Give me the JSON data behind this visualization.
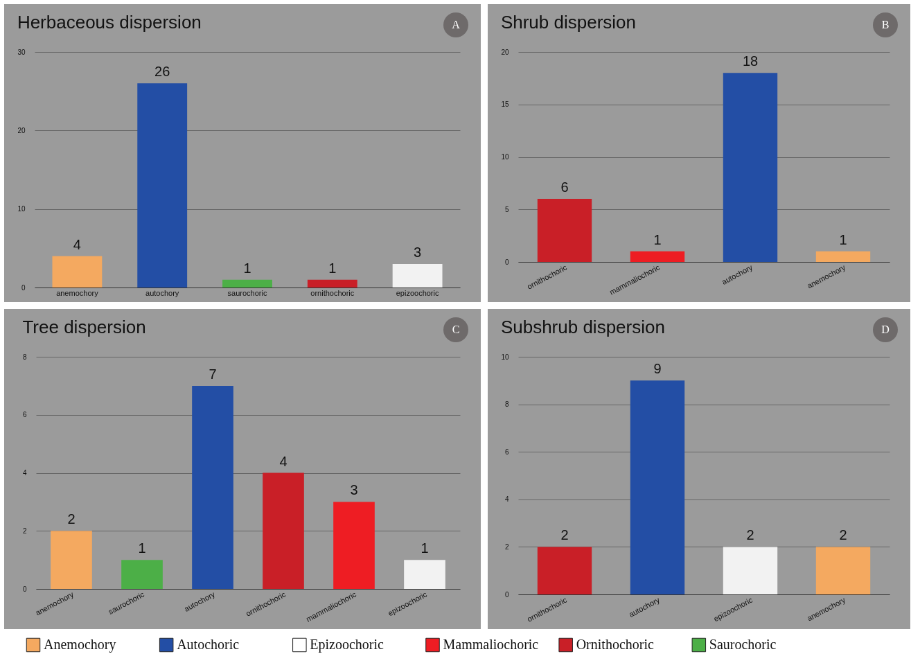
{
  "chart_data": [
    {
      "type": "bar",
      "title": "Herbaceous dispersion",
      "categories": [
        "anemochory",
        "autochory",
        "saurochoric",
        "ornithochoric",
        "epizoochoric"
      ],
      "values": [
        4,
        26,
        1,
        1,
        3
      ],
      "colors": [
        "#f4a960",
        "#234ea5",
        "#4caf47",
        "#c91f27",
        "#f2f2f2"
      ],
      "ylim": [
        0,
        30
      ],
      "yticks": [
        0,
        10,
        20,
        30
      ],
      "grid": "y",
      "data_labels": true,
      "annotations": [
        "A"
      ]
    },
    {
      "type": "bar",
      "title": "Shrub dispersion",
      "categories": [
        "ornithochoric",
        "mammaliochoric",
        "autochory",
        "anemochory"
      ],
      "values": [
        6,
        1,
        18,
        1
      ],
      "colors": [
        "#c91f27",
        "#ee1d23",
        "#234ea5",
        "#f4a960"
      ],
      "ylim": [
        0,
        20
      ],
      "yticks": [
        0,
        5,
        10,
        15,
        20
      ],
      "grid": "y",
      "data_labels": true,
      "annotations": [
        "B"
      ]
    },
    {
      "type": "bar",
      "title": "Tree dispersion",
      "categories": [
        "anemochory",
        "saurochoric",
        "autochory",
        "ornithochoric",
        "mammaliochoric",
        "epizoochoric"
      ],
      "values": [
        2,
        1,
        7,
        4,
        3,
        1
      ],
      "colors": [
        "#f4a960",
        "#4caf47",
        "#234ea5",
        "#c91f27",
        "#ee1d23",
        "#f2f2f2"
      ],
      "ylim": [
        0,
        8
      ],
      "yticks": [
        0,
        2,
        4,
        6,
        8
      ],
      "grid": "y",
      "data_labels": true,
      "annotations": [
        "C"
      ]
    },
    {
      "type": "bar",
      "title": "Subshrub  dispersion",
      "categories": [
        "ornithochoric",
        "autochory",
        "epizoochoric",
        "anemochory"
      ],
      "values": [
        2,
        9,
        2,
        2
      ],
      "colors": [
        "#c91f27",
        "#234ea5",
        "#f2f2f2",
        "#f4a960"
      ],
      "ylim": [
        0,
        10
      ],
      "yticks": [
        0,
        2,
        4,
        6,
        8,
        10
      ],
      "grid": "y",
      "data_labels": true,
      "annotations": [
        "D"
      ]
    },
    {
      "type": "other",
      "categories": [
        "Anemochory",
        "Autochoric",
        "Epizoochoric",
        "Mammaliochoric",
        "Ornithochoric",
        "Saurochoric"
      ],
      "colors": [
        "#f4a960",
        "#234ea5",
        "#ffffff",
        "#ee1d23",
        "#c91f27",
        "#4caf47"
      ]
    }
  ]
}
